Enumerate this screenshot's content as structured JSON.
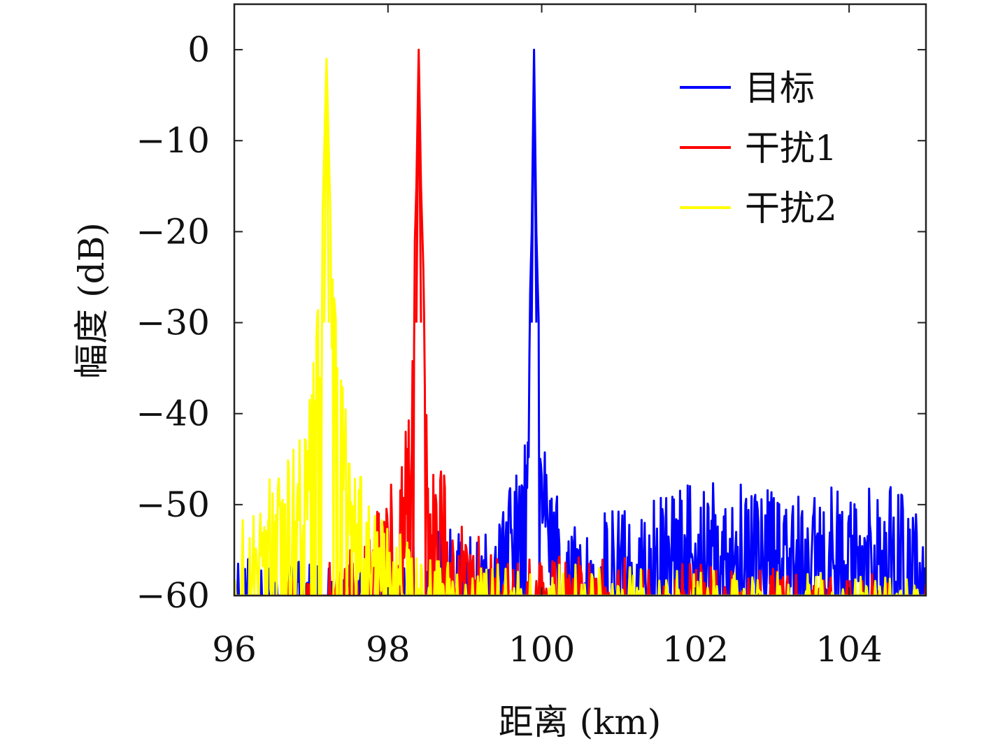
{
  "chart_data": {
    "type": "line",
    "title": "",
    "xlabel": "距离 (km)",
    "ylabel": "幅度 (dB)",
    "xlim": [
      96,
      105
    ],
    "ylim": [
      -60,
      5
    ],
    "xticks": [
      96,
      98,
      100,
      102,
      104
    ],
    "xtick_labels": [
      "96",
      "98",
      "100",
      "102",
      "104"
    ],
    "yticks": [
      0,
      -10,
      -20,
      -30,
      -40,
      -50,
      -60
    ],
    "ytick_labels": [
      "0",
      "−10",
      "−20",
      "−30",
      "−40",
      "−50",
      "−60"
    ],
    "grid": false,
    "legend_position": "top-right",
    "noise_floor_db": -60,
    "series": [
      {
        "name": "目标",
        "color": "#0000ff",
        "peak_x": 99.9,
        "peak_y": 0,
        "points": [
          [
            96.0,
            -56
          ],
          [
            99.3,
            -52
          ],
          [
            99.5,
            -50
          ],
          [
            99.6,
            -48
          ],
          [
            99.7,
            -44
          ],
          [
            99.8,
            -43
          ],
          [
            99.87,
            -20
          ],
          [
            99.9,
            0
          ],
          [
            99.93,
            -20
          ],
          [
            100.0,
            -43
          ],
          [
            100.1,
            -44
          ],
          [
            100.2,
            -49
          ],
          [
            100.4,
            -52
          ],
          [
            102.0,
            -47
          ],
          [
            103.5,
            -48
          ],
          [
            104.8,
            -48
          ],
          [
            105.0,
            -56
          ]
        ],
        "noise_mean_db": -55
      },
      {
        "name": "干扰1",
        "color": "#ff0000",
        "peak_x": 98.4,
        "peak_y": 0,
        "points": [
          [
            96.0,
            -60
          ],
          [
            97.5,
            -55
          ],
          [
            97.8,
            -50
          ],
          [
            98.0,
            -48
          ],
          [
            98.2,
            -43
          ],
          [
            98.3,
            -36
          ],
          [
            98.37,
            -15
          ],
          [
            98.4,
            0
          ],
          [
            98.43,
            -15
          ],
          [
            98.5,
            -36
          ],
          [
            98.6,
            -43
          ],
          [
            98.8,
            -48
          ],
          [
            99.0,
            -52
          ],
          [
            99.5,
            -55
          ],
          [
            105.0,
            -58
          ]
        ],
        "noise_mean_db": -56
      },
      {
        "name": "干扰2",
        "color": "#ffff00",
        "peak_x": 97.2,
        "peak_y": -1,
        "points": [
          [
            96.0,
            -52
          ],
          [
            96.4,
            -48
          ],
          [
            96.7,
            -44
          ],
          [
            96.9,
            -40
          ],
          [
            97.05,
            -33
          ],
          [
            97.15,
            -18
          ],
          [
            97.2,
            -1
          ],
          [
            97.25,
            -18
          ],
          [
            97.35,
            -33
          ],
          [
            97.5,
            -41
          ],
          [
            97.7,
            -47
          ],
          [
            98.0,
            -52
          ],
          [
            98.5,
            -56
          ],
          [
            105.0,
            -58
          ]
        ],
        "noise_mean_db": -57
      }
    ]
  }
}
